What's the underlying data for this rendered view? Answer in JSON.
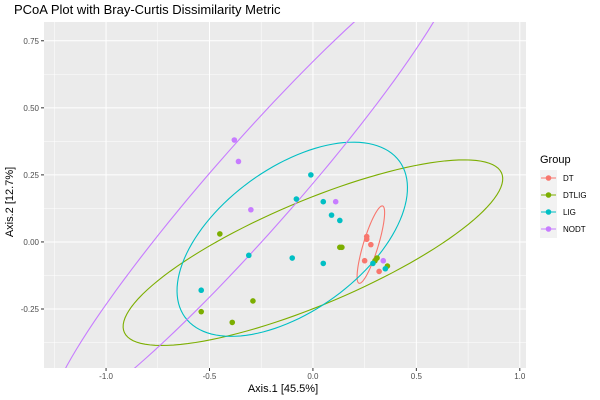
{
  "chart_data": {
    "type": "scatter",
    "title": "PCoA Plot with Bray-Curtis Dissimilarity Metric",
    "xlabel": "Axis.1   [45.5%]",
    "ylabel": "Axis.2   [12.7%]",
    "xlim": [
      -1.3,
      1.03
    ],
    "ylim": [
      -0.47,
      0.82
    ],
    "x_ticks": [
      -1.0,
      -0.5,
      0.0,
      0.5,
      1.0
    ],
    "x_tick_labels": [
      "-1.0",
      "-0.5",
      "0.0",
      "0.5",
      "1.0"
    ],
    "y_ticks": [
      -0.25,
      0.0,
      0.25,
      0.5,
      0.75
    ],
    "y_tick_labels": [
      "-0.25",
      "0.00",
      "0.25",
      "0.50",
      "0.75"
    ],
    "grid": true,
    "legend": {
      "title": "Group",
      "position": "right"
    },
    "series": [
      {
        "name": "DT",
        "color": "#F8766D",
        "points": [
          [
            0.26,
            0.02
          ],
          [
            0.26,
            0.01
          ],
          [
            0.28,
            -0.01
          ],
          [
            0.25,
            -0.07
          ],
          [
            0.32,
            -0.11
          ]
        ],
        "ellipse": {
          "center": [
            0.28,
            -0.01
          ],
          "rx": 0.155,
          "ry": 0.035,
          "angle_deg": 68
        }
      },
      {
        "name": "DTLIG",
        "color": "#7CAE00",
        "points": [
          [
            -0.45,
            0.03
          ],
          [
            0.13,
            -0.02
          ],
          [
            0.14,
            -0.02
          ],
          [
            0.3,
            -0.07
          ],
          [
            0.31,
            -0.06
          ],
          [
            0.36,
            -0.09
          ],
          [
            -0.29,
            -0.22
          ],
          [
            -0.39,
            -0.3
          ],
          [
            -0.54,
            -0.26
          ]
        ],
        "ellipse": {
          "center": [
            0.0,
            -0.04
          ],
          "rx": 0.96,
          "ry": 0.2,
          "angle_deg": 17.5
        }
      },
      {
        "name": "LIG",
        "color": "#00BFC4",
        "points": [
          [
            -0.01,
            0.25
          ],
          [
            -0.08,
            0.16
          ],
          [
            0.05,
            0.15
          ],
          [
            0.09,
            0.1
          ],
          [
            0.13,
            0.08
          ],
          [
            -0.31,
            -0.05
          ],
          [
            -0.1,
            -0.06
          ],
          [
            0.05,
            -0.08
          ],
          [
            0.29,
            -0.08
          ],
          [
            0.35,
            -0.1
          ],
          [
            -0.54,
            -0.18
          ]
        ],
        "ellipse": {
          "center": [
            -0.1,
            0.01
          ],
          "rx": 0.6,
          "ry": 0.285,
          "angle_deg": 25
        }
      },
      {
        "name": "NODT",
        "color": "#C77CFF",
        "points": [
          [
            -0.38,
            0.38
          ],
          [
            -0.36,
            0.3
          ],
          [
            -0.3,
            0.12
          ],
          [
            0.11,
            0.15
          ],
          [
            0.34,
            -0.07
          ]
        ],
        "ellipse": {
          "center": [
            -0.28,
            0.21
          ],
          "rx": 1.3,
          "ry": 0.18,
          "angle_deg": 41
        }
      }
    ]
  }
}
